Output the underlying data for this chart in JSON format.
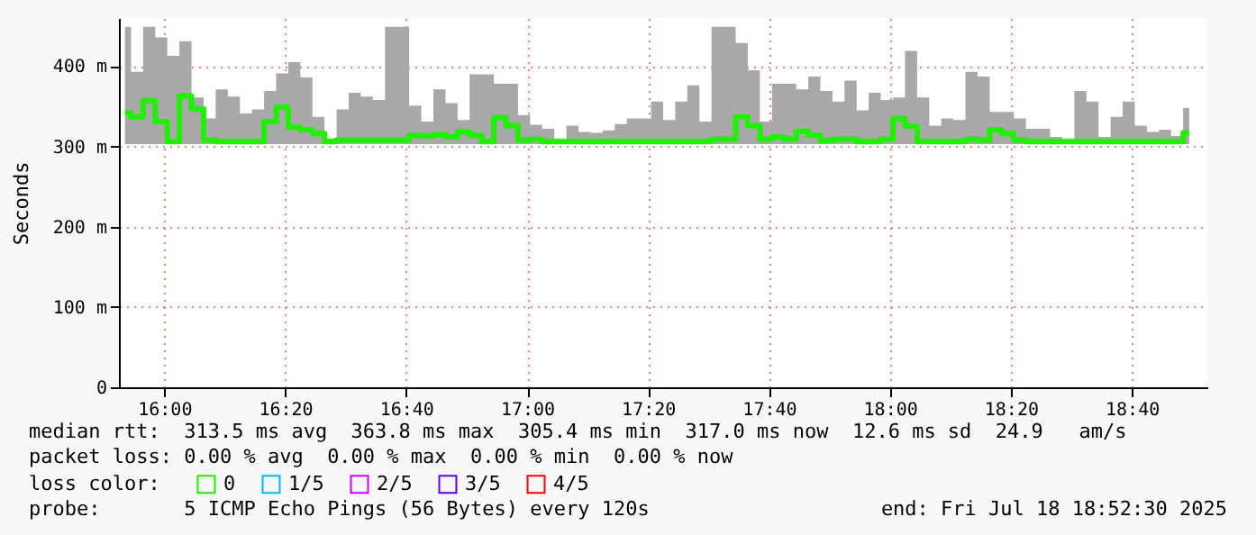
{
  "chart_data": {
    "type": "step",
    "ylabel": "Seconds",
    "legend_title": "loss color:",
    "annotations": [
      "median rtt:  313.5 ms avg  363.8 ms max  305.4 ms min  317.0 ms now  12.6 ms sd  24.9   am/s",
      "packet loss: 0.00 % avg  0.00 % max  0.00 % min  0.00 % now",
      "probe:       5 ICMP Echo Pings (56 Bytes) every 120s",
      "end: Fri Jul 18 18:52:30 2025"
    ],
    "x": [
      15.8917,
      15.925,
      15.9583,
      15.9917,
      16.025,
      16.0583,
      16.0917,
      16.125,
      16.1583,
      16.1917,
      16.225,
      16.2583,
      16.2917,
      16.325,
      16.3583,
      16.3917,
      16.425,
      16.4583,
      16.4917,
      16.525,
      16.5583,
      16.5917,
      16.625,
      16.6583,
      16.6917,
      16.725,
      16.7583,
      16.7917,
      16.825,
      16.8583,
      16.8917,
      16.925,
      16.9583,
      16.9917,
      17.025,
      17.0583,
      17.0917,
      17.125,
      17.1583,
      17.1917,
      17.225,
      17.2583,
      17.2917,
      17.325,
      17.3583,
      17.3917,
      17.425,
      17.4583,
      17.4917,
      17.525,
      17.5583,
      17.5917,
      17.625,
      17.6583,
      17.6917,
      17.725,
      17.7583,
      17.7917,
      17.825,
      17.8583,
      17.8917,
      17.925,
      17.9583,
      17.9917,
      18.025,
      18.0583,
      18.0917,
      18.125,
      18.1583,
      18.1917,
      18.225,
      18.2583,
      18.2917,
      18.325,
      18.3583,
      18.3917,
      18.425,
      18.4583,
      18.4917,
      18.525,
      18.5583,
      18.5917,
      18.625,
      18.6583,
      18.6917,
      18.725,
      18.7583,
      18.7917,
      18.825
    ],
    "series": [
      {
        "name": "0",
        "color": "#20f000",
        "values": [
          342,
          337,
          357,
          331,
          306,
          363,
          347,
          308,
          306,
          306,
          306,
          306,
          331,
          349,
          324,
          321,
          316,
          306,
          308,
          308,
          308,
          308,
          308,
          308,
          314,
          313,
          315,
          312,
          318,
          314,
          306,
          336,
          326,
          308,
          309,
          306,
          306,
          306,
          306,
          306,
          306,
          306,
          306,
          306,
          306,
          306,
          306,
          306,
          306,
          309,
          309,
          337,
          326,
          309,
          312,
          309,
          319,
          314,
          307,
          309,
          309,
          306,
          306,
          309,
          335,
          325,
          306,
          306,
          306,
          306,
          309,
          308,
          321,
          316,
          308,
          306,
          306,
          306,
          306,
          306,
          306,
          306,
          306,
          306,
          306,
          306,
          306,
          306,
          317
        ],
        "lower": [
          303,
          303,
          303,
          303,
          303,
          303,
          303,
          303,
          303,
          303,
          303,
          303,
          303,
          303,
          303,
          303,
          303,
          303,
          303,
          303,
          303,
          303,
          303,
          303,
          303,
          303,
          303,
          303,
          303,
          303,
          303,
          303,
          303,
          303,
          303,
          303,
          303,
          303,
          303,
          303,
          303,
          303,
          303,
          303,
          303,
          303,
          303,
          303,
          303,
          303,
          303,
          303,
          303,
          303,
          303,
          303,
          303,
          303,
          303,
          303,
          303,
          303,
          303,
          303,
          303,
          303,
          303,
          303,
          303,
          303,
          303,
          303,
          303,
          303,
          303,
          303,
          303,
          303,
          303,
          303,
          303,
          303,
          303,
          303,
          303,
          303,
          303,
          303,
          303
        ],
        "upper": [
          449,
          393,
          449,
          436,
          413,
          431,
          361,
          335,
          371,
          362,
          341,
          346,
          369,
          391,
          405,
          386,
          337,
          310,
          346,
          367,
          362,
          358,
          449,
          449,
          351,
          331,
          371,
          354,
          333,
          390,
          390,
          378,
          378,
          339,
          327,
          322,
          309,
          326,
          318,
          317,
          320,
          328,
          335,
          335,
          356,
          333,
          356,
          376,
          331,
          449,
          449,
          429,
          395,
          331,
          378,
          378,
          371,
          387,
          369,
          356,
          382,
          345,
          367,
          358,
          361,
          419,
          361,
          326,
          335,
          333,
          393,
          387,
          343,
          343,
          335,
          322,
          322,
          312,
          309,
          369,
          356,
          312,
          337,
          356,
          326,
          318,
          321,
          313,
          348
        ]
      },
      {
        "name": "1/5",
        "color": "#00b8ff",
        "values": [
          null,
          null,
          null,
          null,
          null,
          null,
          null,
          null,
          null,
          null,
          null,
          null,
          null,
          null,
          null,
          null,
          null,
          null,
          null,
          null,
          null,
          null,
          null,
          null,
          null,
          null,
          null,
          null,
          null,
          null,
          null,
          null,
          null,
          null,
          null,
          null,
          null,
          null,
          null,
          null,
          null,
          null,
          null,
          null,
          null,
          null,
          null,
          null,
          null,
          null,
          null,
          null,
          null,
          null,
          null,
          null,
          null,
          null,
          null,
          null,
          null,
          null,
          null,
          null,
          null,
          null,
          null,
          null,
          null,
          null,
          null,
          null,
          null,
          null,
          null,
          null,
          null,
          null,
          null,
          null,
          null,
          null,
          null,
          null,
          null,
          null,
          null,
          null,
          null
        ]
      },
      {
        "name": "2/5",
        "color": "#d000ff",
        "values": [
          null,
          null,
          null,
          null,
          null,
          null,
          null,
          null,
          null,
          null,
          null,
          null,
          null,
          null,
          null,
          null,
          null,
          null,
          null,
          null,
          null,
          null,
          null,
          null,
          null,
          null,
          null,
          null,
          null,
          null,
          null,
          null,
          null,
          null,
          null,
          null,
          null,
          null,
          null,
          null,
          null,
          null,
          null,
          null,
          null,
          null,
          null,
          null,
          null,
          null,
          null,
          null,
          null,
          null,
          null,
          null,
          null,
          null,
          null,
          null,
          null,
          null,
          null,
          null,
          null,
          null,
          null,
          null,
          null,
          null,
          null,
          null,
          null,
          null,
          null,
          null,
          null,
          null,
          null,
          null,
          null,
          null,
          null,
          null,
          null,
          null,
          null,
          null,
          null
        ]
      },
      {
        "name": "3/5",
        "color": "#5a00ff",
        "values": [
          null,
          null,
          null,
          null,
          null,
          null,
          null,
          null,
          null,
          null,
          null,
          null,
          null,
          null,
          null,
          null,
          null,
          null,
          null,
          null,
          null,
          null,
          null,
          null,
          null,
          null,
          null,
          null,
          null,
          null,
          null,
          null,
          null,
          null,
          null,
          null,
          null,
          null,
          null,
          null,
          null,
          null,
          null,
          null,
          null,
          null,
          null,
          null,
          null,
          null,
          null,
          null,
          null,
          null,
          null,
          null,
          null,
          null,
          null,
          null,
          null,
          null,
          null,
          null,
          null,
          null,
          null,
          null,
          null,
          null,
          null,
          null,
          null,
          null,
          null,
          null,
          null,
          null,
          null,
          null,
          null,
          null,
          null,
          null,
          null,
          null,
          null,
          null,
          null
        ]
      },
      {
        "name": "4/5",
        "color": "#ff0000",
        "values": [
          null,
          null,
          null,
          null,
          null,
          null,
          null,
          null,
          null,
          null,
          null,
          null,
          null,
          null,
          null,
          null,
          null,
          null,
          null,
          null,
          null,
          null,
          null,
          null,
          null,
          null,
          null,
          null,
          null,
          null,
          null,
          null,
          null,
          null,
          null,
          null,
          null,
          null,
          null,
          null,
          null,
          null,
          null,
          null,
          null,
          null,
          null,
          null,
          null,
          null,
          null,
          null,
          null,
          null,
          null,
          null,
          null,
          null,
          null,
          null,
          null,
          null,
          null,
          null,
          null,
          null,
          null,
          null,
          null,
          null,
          null,
          null,
          null,
          null,
          null,
          null,
          null,
          null,
          null,
          null,
          null,
          null,
          null,
          null,
          null,
          null,
          null,
          null,
          null
        ]
      }
    ],
    "xlim": [
      15.875,
      18.875
    ],
    "xticks": [
      {
        "value": 16,
        "label": "16:00"
      },
      {
        "value": 16.3333,
        "label": "16:20"
      },
      {
        "value": 16.6667,
        "label": "16:40"
      },
      {
        "value": 17,
        "label": "17:00"
      },
      {
        "value": 17.3333,
        "label": "17:20"
      },
      {
        "value": 17.6667,
        "label": "17:40"
      },
      {
        "value": 18,
        "label": "18:00"
      },
      {
        "value": 18.3333,
        "label": "18:20"
      },
      {
        "value": 18.6667,
        "label": "18:40"
      }
    ],
    "ylim": [
      0,
      460
    ],
    "yticks": [
      0,
      {
        "value": 100,
        "label": "100 m"
      },
      {
        "value": 200,
        "label": "200 m"
      },
      {
        "value": 300,
        "label": "300 m"
      },
      {
        "value": 400,
        "label": "400 m"
      }
    ],
    "grid": true,
    "legend": "bottom left",
    "line_style": "solid"
  }
}
